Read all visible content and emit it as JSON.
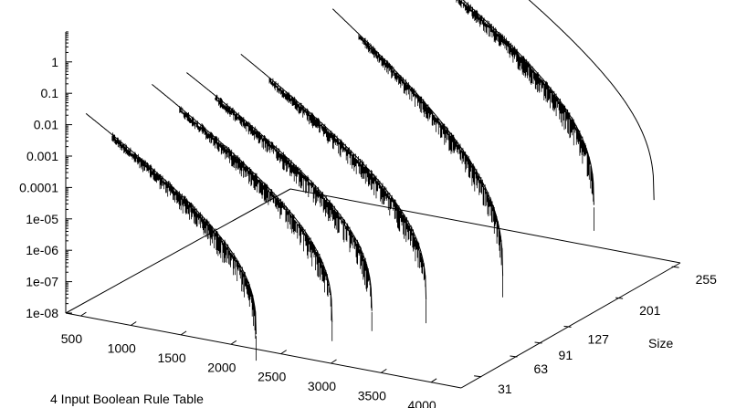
{
  "chart_data": {
    "type": "line",
    "projection": "3d",
    "title": "",
    "xlabel": "4 Input Boolean Rule Table",
    "ylabel": "Size",
    "zlabel": "",
    "z_scale": "log",
    "x_ticks": [
      "500",
      "1000",
      "1500",
      "2000",
      "2500",
      "3000",
      "3500",
      "4000"
    ],
    "y_ticks": [
      "31",
      "63",
      "91",
      "127",
      "201",
      "255"
    ],
    "z_ticks": [
      "1",
      "0.1",
      "0.01",
      "0.001",
      "0.0001",
      "1e-05",
      "1e-06",
      "1e-07",
      "1e-08"
    ],
    "xlim": [
      350,
      4300
    ],
    "zlim": [
      1e-08,
      10
    ],
    "series": [
      {
        "size": 31,
        "x_start": 350,
        "x_end": 2050,
        "z_start": 0.01,
        "z_end": 1e-08
      },
      {
        "size": 63,
        "x_start": 650,
        "x_end": 2450,
        "z_start": 0.03,
        "z_end": 1e-08
      },
      {
        "size": 91,
        "x_start": 750,
        "x_end": 2600,
        "z_start": 0.03,
        "z_end": 1e-08
      },
      {
        "size": 127,
        "x_start": 1000,
        "x_end": 2850,
        "z_start": 0.05,
        "z_end": 1e-08
      },
      {
        "size": 201,
        "x_start": 1400,
        "x_end": 3100,
        "z_start": 0.3,
        "z_end": 1e-08
      },
      {
        "size": 255,
        "x_start": 1700,
        "x_end": 3450,
        "z_start": 1.5,
        "z_end": 3e-07
      },
      {
        "size": 255,
        "x_start": 2150,
        "x_end": 4050,
        "z_start": 10,
        "z_end": 1e-06
      }
    ]
  }
}
